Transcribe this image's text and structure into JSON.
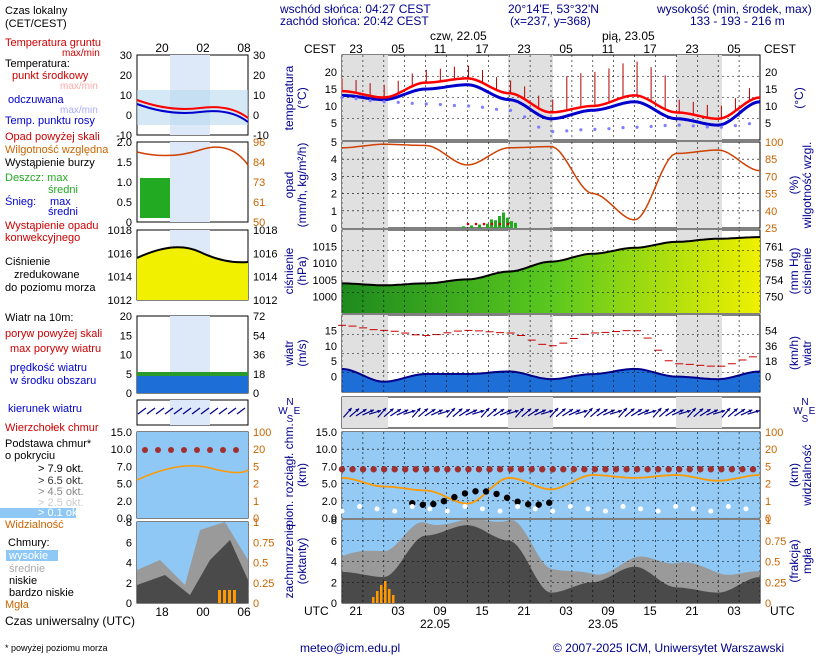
{
  "header": {
    "sunrise": "wschód słońca: 04:27 CEST",
    "sunset": "zachód słońca: 20:42 CEST",
    "coords": "20°14'E, 53°32'N",
    "grid": "(x=237,  y=368)",
    "elevation_label": "wysokość (min, środek, max)",
    "elevation_values": "133 - 193 - 216 m",
    "day1": "czw, 22.05",
    "day2": "pią, 23.05",
    "cest": "CEST",
    "utc": "UTC",
    "top_hours": [
      "23",
      "05",
      "11",
      "17",
      "23",
      "05",
      "11",
      "17",
      "23",
      "05"
    ],
    "bottom_hours": [
      "21",
      "03",
      "09",
      "15",
      "21",
      "03",
      "09",
      "15",
      "21",
      "03"
    ],
    "bottom_date1": "22.05",
    "bottom_date2": "23.05"
  },
  "legend": {
    "local_time": [
      "Czas lokalny",
      "(CET/CEST)"
    ],
    "legend_top_hours": [
      "20",
      "02",
      "08"
    ],
    "legend_bottom_hours": [
      "18",
      "00",
      "06"
    ],
    "soil": "Temperatura gruntu",
    "maxmin": "max/min",
    "temp_title": "Temperatura:",
    "mid": "punkt środkowy",
    "maxmin2": "max/min",
    "felt": "odczuwana",
    "maxmin3": "max/min",
    "dew": "Temp. punktu rosy",
    "rain_above": "Opad powyżej skali",
    "humidity": "Wilgotność względna",
    "storm": "Wystąpienie burzy",
    "rain": "Deszcz: max",
    "rain_mid": "średni",
    "snow": "Śnieg:",
    "snow_max": "max",
    "snow_mid": "średni",
    "conv": [
      "Wystąpienie opadu",
      "konwekcyjnego"
    ],
    "pressure": [
      "Ciśnienie",
      "zredukowane",
      "do poziomu morza"
    ],
    "wind": "Wiatr na 10m:",
    "gust_above": "poryw powyżej skali",
    "gust_max": "max porywy wiatru",
    "wind_avg": [
      "prędkość wiatru",
      "w środku obszaru"
    ],
    "wind_dir": "kierunek wiatru",
    "cloud_top": "Wierzchołek chmur",
    "cloud_base": [
      "Podstawa chmur*",
      "o pokryciu"
    ],
    "okt": [
      "> 7.9 okt.",
      "> 6.5 okt.",
      "> 4.5 okt.",
      "> 2.5 okt.",
      "> 0.1 okt."
    ],
    "vis": "Widzialność",
    "clouds": "Chmury:",
    "high": "wysokie",
    "mid_c": "średnie",
    "low": "niskie",
    "very_low": "bardzo niskie",
    "fog": "Mgła",
    "utc_label": "Czas uniwersalny (UTC)",
    "footnote": "* powyżej poziomu morza"
  },
  "axes": {
    "temp_label": [
      "temperatura",
      "(°C)"
    ],
    "temp_right": "(°C)",
    "rain_label": [
      "opad",
      "(mm/h, kg/m²/h)"
    ],
    "hum_label": [
      "(%)",
      "wilgotność wzgl."
    ],
    "press_label": [
      "ciśnienie",
      "(hPa)"
    ],
    "press_right": [
      "(mm Hg)",
      "ciśnienie"
    ],
    "wind_label": [
      "wiatr",
      "(m/s)"
    ],
    "wind_right": [
      "(km/h)",
      "wiatr"
    ],
    "dir_letters": [
      "N",
      "W",
      "E",
      "S"
    ],
    "cloud_label": [
      "pion. rozciągł. chm.",
      "(km)"
    ],
    "vis_label": [
      "(km)",
      "widzialność"
    ],
    "cover_label": [
      "zachmurzenie",
      "(oktanty)"
    ],
    "fog_label": [
      "(frakcja)",
      "mgła"
    ]
  },
  "ticks": {
    "temp_left": [
      "20",
      "15",
      "10",
      "5"
    ],
    "temp_right": [
      "20",
      "15",
      "10",
      "5"
    ],
    "legend_temp": [
      "30",
      "20",
      "10",
      "0",
      "-10"
    ],
    "rain_left": [
      "5",
      "4",
      "3",
      "2",
      "1",
      "0"
    ],
    "hum_right": [
      "100",
      "85",
      "70",
      "55",
      "40",
      "25"
    ],
    "legend_rain": [
      "2.0",
      "1.5",
      "1.0",
      "0.5",
      "0"
    ],
    "legend_hum": [
      "96",
      "84",
      "73",
      "61",
      "50"
    ],
    "press_left": [
      "1015",
      "1010",
      "1005",
      "1000"
    ],
    "press_right": [
      "761",
      "758",
      "754",
      "750"
    ],
    "legend_press": [
      "1018",
      "1016",
      "1014",
      "1012"
    ],
    "wind_left": [
      "15",
      "10",
      "5",
      "0"
    ],
    "wind_right": [
      "54",
      "36",
      "18",
      "0"
    ],
    "legend_wind_left": [
      "20",
      "15",
      "10",
      "5",
      "0"
    ],
    "legend_wind_right": [
      "72",
      "54",
      "36",
      "18",
      "0"
    ],
    "cloud_left": [
      "15.0",
      "10.0",
      "7.0",
      "5.0",
      "2.0",
      "0.0"
    ],
    "vis_right": [
      "100",
      "20",
      "5",
      "2",
      "1",
      "0"
    ],
    "cover_left": [
      "8",
      "6",
      "4",
      "2",
      "0"
    ],
    "fog_right": [
      "1",
      "0.75",
      "0.5",
      "0.25",
      "0"
    ]
  },
  "footer": {
    "email": "meteo@icm.edu.pl",
    "copyright": "© 2007-2025 ICM, Uniwersytet Warszawski"
  },
  "colors": {
    "temp": "#ff0000",
    "felt": "#0000cc",
    "dew": "#8080ff",
    "humidity": "#d04000",
    "rain": "#22aa22",
    "pressure_fill": "#7fcf2f",
    "wind_fill": "#1e6ed8",
    "cloud_top": "#a03030",
    "visibility": "#ff9900",
    "sky": "#8fc8f4",
    "night": "#e0e0e0"
  },
  "chart_data": [
    {
      "type": "line",
      "name_hint": "temperature",
      "x": [
        "22.05 21",
        "22.05 03",
        "22.05 09",
        "22.05 15",
        "22.05 21",
        "23.05 03",
        "23.05 09",
        "23.05 15",
        "23.05 21",
        "24.05 03",
        "24.05 06"
      ],
      "series": [
        {
          "name": "punkt środkowy",
          "values": [
            11.5,
            10.0,
            13.5,
            14.5,
            11.0,
            6.5,
            8.0,
            10.5,
            6.5,
            5.0,
            10.0
          ]
        },
        {
          "name": "odczuwana",
          "values": [
            10.5,
            9.5,
            12.0,
            13.0,
            9.5,
            5.0,
            7.0,
            9.0,
            5.0,
            3.5,
            9.0
          ]
        },
        {
          "name": "Temp. punktu rosy",
          "values": [
            10.0,
            9.0,
            8.5,
            8.0,
            7.0,
            2.0,
            2.5,
            3.0,
            3.5,
            3.0,
            4.0
          ]
        }
      ],
      "ylim": [
        0,
        20
      ]
    },
    {
      "type": "bar",
      "name_hint": "precipitation_humidity",
      "x": [
        "22.05 21",
        "22.05 03",
        "22.05 09",
        "22.05 15",
        "22.05 21",
        "23.05 03",
        "23.05 09",
        "23.05 15",
        "23.05 21",
        "24.05 03",
        "24.05 06"
      ],
      "series": [
        {
          "name": "Wilgotność względna",
          "values": [
            95,
            98,
            97,
            80,
            95,
            96,
            55,
            32,
            90,
            93,
            75
          ]
        },
        {
          "name": "Deszcz: średni",
          "values": [
            0,
            0,
            0,
            0,
            0.6,
            0,
            0,
            0,
            0,
            0,
            0
          ]
        }
      ],
      "ylim": [
        0,
        5
      ]
    },
    {
      "type": "area",
      "name_hint": "pressure",
      "x": [
        "22.05 21",
        "22.05 03",
        "22.05 09",
        "22.05 15",
        "22.05 21",
        "23.05 03",
        "23.05 09",
        "23.05 15",
        "23.05 21",
        "24.05 03",
        "24.05 06"
      ],
      "values": [
        1004.5,
        1004.0,
        1004.5,
        1005.5,
        1007.5,
        1010.0,
        1012.0,
        1013.5,
        1015.0,
        1015.8,
        1016.2
      ],
      "ylim": [
        997,
        1018
      ]
    },
    {
      "type": "area",
      "name_hint": "wind",
      "x": [
        "22.05 21",
        "22.05 03",
        "22.05 09",
        "22.05 15",
        "22.05 21",
        "23.05 03",
        "23.05 09",
        "23.05 15",
        "23.05 21",
        "24.05 03",
        "24.05 06"
      ],
      "series": [
        {
          "name": "prędkość wiatru",
          "values": [
            4.5,
            2.0,
            3.5,
            3.5,
            4.0,
            2.5,
            3.5,
            4.5,
            3.0,
            2.5,
            4.0
          ]
        },
        {
          "name": "max porywy wiatru",
          "values": [
            13.0,
            12.0,
            11.0,
            12.0,
            11.5,
            9.0,
            11.5,
            12.0,
            5.5,
            5.0,
            7.0
          ]
        }
      ],
      "ylim": [
        0,
        15
      ]
    },
    {
      "type": "scatter",
      "name_hint": "cloud_top_visibility",
      "x": [
        "22.05 21",
        "22.05 03",
        "22.05 09",
        "22.05 15",
        "22.05 21",
        "23.05 03",
        "23.05 09",
        "23.05 15",
        "23.05 21",
        "24.05 03",
        "24.05 06"
      ],
      "series": [
        {
          "name": "Wierzchołek chmur",
          "values": [
            8.5,
            8.5,
            8.5,
            8.5,
            8.5,
            8.5,
            8.5,
            8.5,
            8.5,
            8.5,
            8.5
          ]
        },
        {
          "name": "Widzialność",
          "values": [
            7.0,
            5.5,
            4.8,
            2.5,
            7.0,
            5.0,
            7.5,
            7.0,
            7.5,
            6.5,
            7.5
          ]
        }
      ],
      "ylim": [
        0,
        15
      ]
    },
    {
      "type": "area",
      "name_hint": "cloud_cover",
      "x": [
        "22.05 21",
        "22.05 03",
        "22.05 09",
        "22.05 15",
        "22.05 21",
        "23.05 03",
        "23.05 09",
        "23.05 15",
        "23.05 21",
        "24.05 03",
        "24.05 06"
      ],
      "series": [
        {
          "name": "niskie",
          "values": [
            3.0,
            2.5,
            6.5,
            7.5,
            6.0,
            1.0,
            2.0,
            3.5,
            1.5,
            1.0,
            2.5
          ]
        },
        {
          "name": "Mgła",
          "values": [
            0.0,
            0.28,
            0.0,
            0.0,
            0.05,
            0.0,
            0.0,
            0.0,
            0.0,
            0.0,
            0.0
          ]
        }
      ],
      "ylim": [
        0,
        8
      ]
    }
  ]
}
